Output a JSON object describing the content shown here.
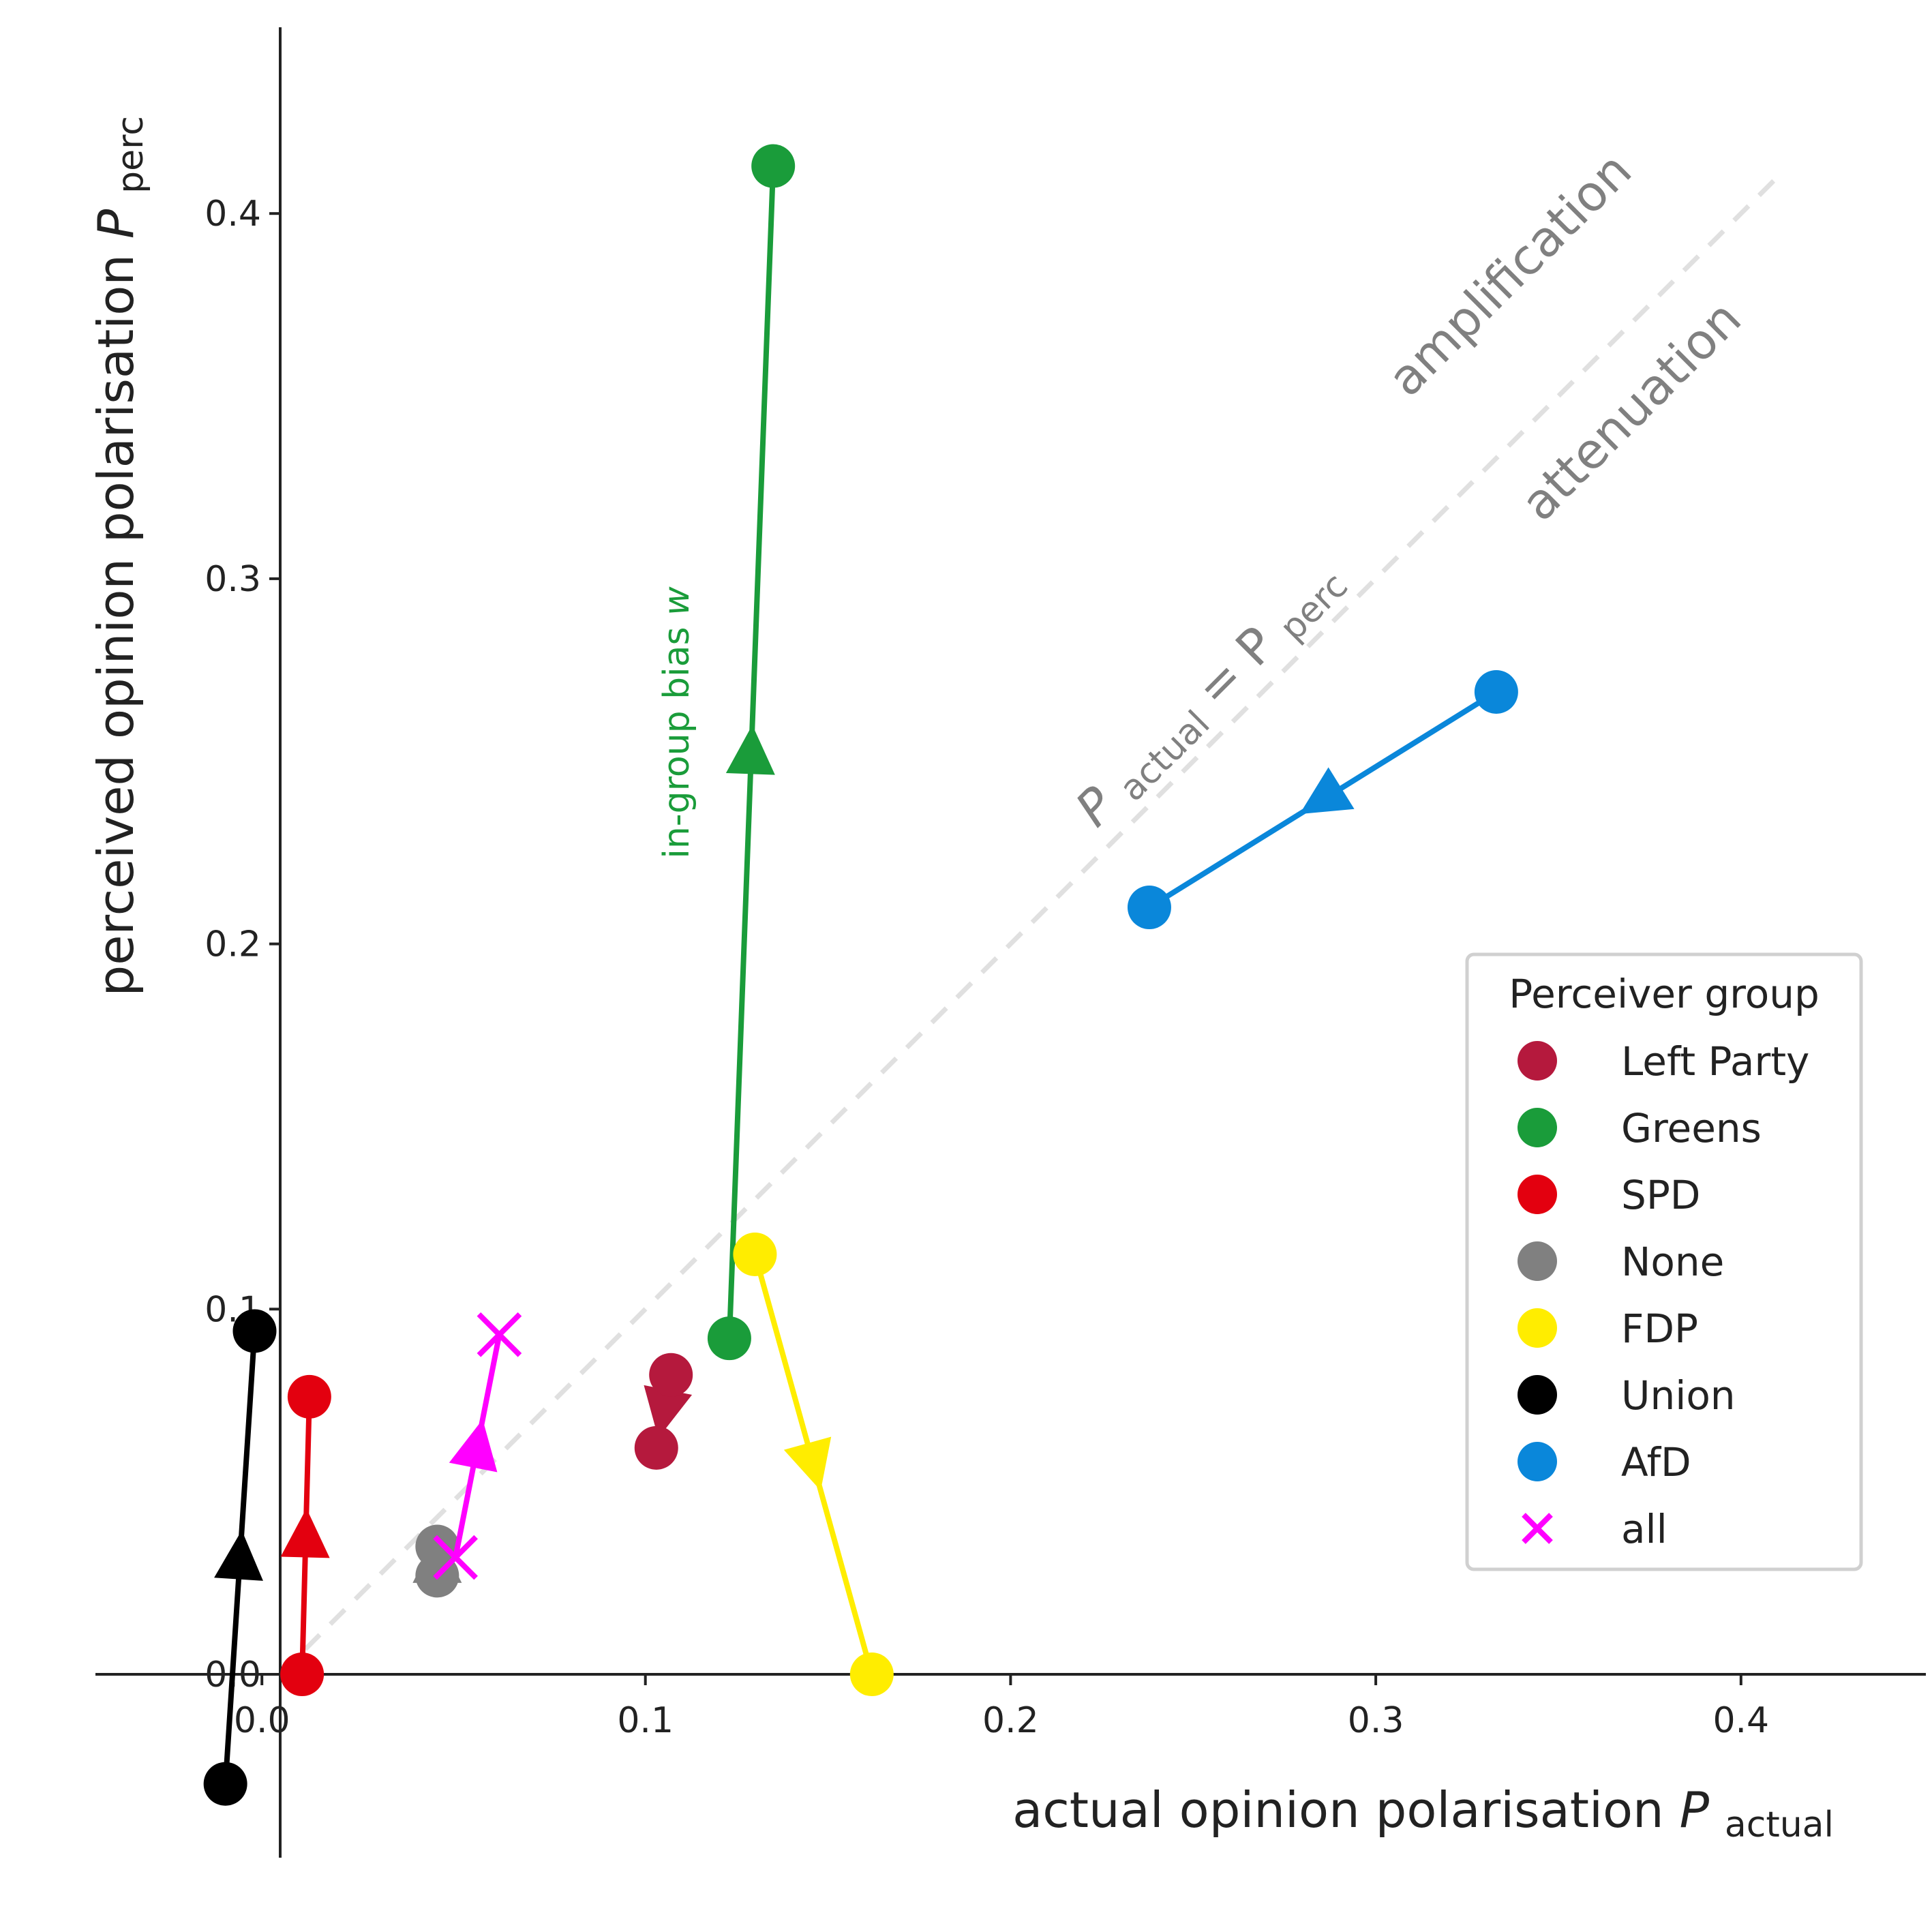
{
  "chart_data": {
    "type": "scatter",
    "title": "",
    "xlabel": "actual opinion polarisation",
    "xlabel_symbol": "P",
    "xlabel_sub": "actual",
    "ylabel": "perceived opinion polarisation",
    "ylabel_symbol": "P",
    "ylabel_sub": "perc",
    "xlim": [
      -0.05,
      0.45
    ],
    "ylim": [
      -0.05,
      0.45
    ],
    "x_ticks": [
      {
        "value": -0.005,
        "label": "0.0"
      },
      {
        "value": 0.1,
        "label": "0.1"
      },
      {
        "value": 0.2,
        "label": "0.2"
      },
      {
        "value": 0.3,
        "label": "0.3"
      },
      {
        "value": 0.4,
        "label": "0.4"
      }
    ],
    "y_ticks": [
      {
        "value": 0.0,
        "label": "0.0"
      },
      {
        "value": 0.1,
        "label": "0.1"
      },
      {
        "value": 0.2,
        "label": "0.2"
      },
      {
        "value": 0.3,
        "label": "0.3"
      },
      {
        "value": 0.4,
        "label": "0.4"
      }
    ],
    "grid": false,
    "identity_line": {
      "from": [
        0.0,
        0.0
      ],
      "to": [
        0.41,
        0.41
      ],
      "color": "#e0e0e0",
      "label_main": "P",
      "label_sub1": "actual",
      "label_eq": " = P",
      "label_sub2": "perc"
    },
    "annotations": {
      "amplification": "amplification",
      "attenuation": "attenuation",
      "ingroup_bias": "in-group bias ",
      "ingroup_bias_w": "w"
    },
    "series": [
      {
        "name": "Left Party",
        "color": "#b5193d",
        "marker": "circle",
        "start": [
          0.107,
          0.082
        ],
        "end": [
          0.103,
          0.062
        ]
      },
      {
        "name": "Greens",
        "color": "#1a9c3a",
        "marker": "circle",
        "start": [
          0.123,
          0.092
        ],
        "end": [
          0.135,
          0.413
        ]
      },
      {
        "name": "SPD",
        "color": "#e3000f",
        "marker": "circle",
        "start": [
          0.006,
          0.0
        ],
        "end": [
          0.008,
          0.076
        ]
      },
      {
        "name": "None",
        "color": "#808080",
        "marker": "circle",
        "start": [
          0.043,
          0.027
        ],
        "end": [
          0.043,
          0.035
        ]
      },
      {
        "name": "FDP",
        "color": "#ffed00",
        "marker": "circle",
        "start": [
          0.13,
          0.115
        ],
        "end": [
          0.162,
          0.0
        ]
      },
      {
        "name": "Union",
        "color": "#000000",
        "marker": "circle",
        "start": [
          -0.015,
          -0.03
        ],
        "end": [
          -0.007,
          0.094
        ]
      },
      {
        "name": "AfD",
        "color": "#0a87da",
        "marker": "circle",
        "start": [
          0.333,
          0.269
        ],
        "end": [
          0.238,
          0.21
        ]
      },
      {
        "name": "all",
        "color": "#ff00ff",
        "marker": "x",
        "start": [
          0.048,
          0.032
        ],
        "end": [
          0.06,
          0.093
        ]
      }
    ],
    "legend": {
      "title": "Perceiver group",
      "placement": "center-right",
      "entries": [
        "Left Party",
        "Greens",
        "SPD",
        "None",
        "FDP",
        "Union",
        "AfD",
        "all"
      ]
    }
  }
}
